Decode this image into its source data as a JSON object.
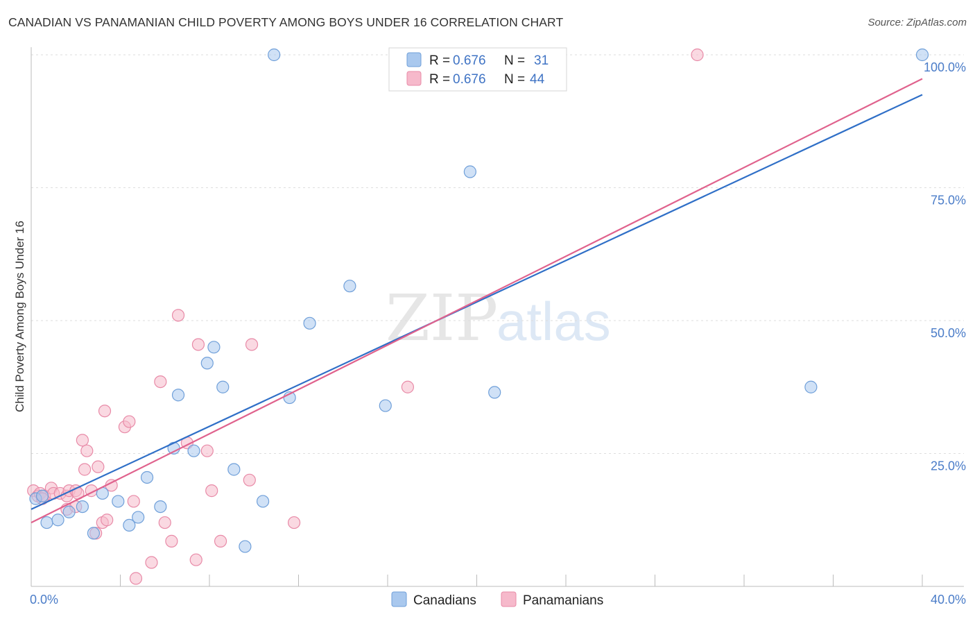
{
  "title": "CANADIAN VS PANAMANIAN CHILD POVERTY AMONG BOYS UNDER 16 CORRELATION CHART",
  "source": "Source: ZipAtlas.com",
  "watermark": {
    "zip": "ZIP",
    "atlas": "atlas"
  },
  "colors": {
    "canadians_fill": "#a9c8ee",
    "canadians_stroke": "#6f9fd9",
    "canadians_line": "#2f6fc7",
    "panamanians_fill": "#f6b9cb",
    "panamanians_stroke": "#e88aa7",
    "panamanians_line": "#e0628d",
    "tick_text": "#4a7cc8",
    "grid": "#dddddd"
  },
  "legend": {
    "rows": [
      {
        "r_label": "R = ",
        "r_value": "0.676",
        "n_label": "N = ",
        "n_value": "31",
        "series": "Canadians"
      },
      {
        "r_label": "R = ",
        "r_value": "0.676",
        "n_label": "N = ",
        "n_value": "44",
        "series": "Panamanians"
      }
    ]
  },
  "chart_data": {
    "type": "scatter",
    "title": "CANADIAN VS PANAMANIAN CHILD POVERTY AMONG BOYS UNDER 16 CORRELATION CHART",
    "xlabel": "",
    "ylabel": "Child Poverty Among Boys Under 16",
    "xlim": [
      0,
      40
    ],
    "ylim": [
      0,
      102
    ],
    "x_tick_labels": [
      "0.0%",
      "40.0%"
    ],
    "y_ticks": [
      25,
      50,
      75,
      100
    ],
    "y_tick_labels": [
      "25.0%",
      "50.0%",
      "75.0%",
      "100.0%"
    ],
    "grid": true,
    "legend_position": "top-center",
    "series": [
      {
        "name": "Canadians",
        "r": 0.676,
        "n": 31,
        "trend": {
          "x0": 0,
          "y0": 14.5,
          "x1": 40,
          "y1": 92.5
        },
        "points": [
          [
            0.2,
            16.5
          ],
          [
            0.5,
            17.0
          ],
          [
            0.7,
            12.0
          ],
          [
            1.2,
            12.5
          ],
          [
            1.7,
            14.0
          ],
          [
            2.3,
            15.0
          ],
          [
            2.8,
            10.0
          ],
          [
            3.2,
            17.5
          ],
          [
            3.9,
            16.0
          ],
          [
            4.4,
            11.5
          ],
          [
            4.8,
            13.0
          ],
          [
            5.2,
            20.5
          ],
          [
            5.8,
            15.0
          ],
          [
            6.6,
            36.0
          ],
          [
            6.4,
            26.0
          ],
          [
            7.3,
            25.5
          ],
          [
            7.9,
            42.0
          ],
          [
            8.2,
            45.0
          ],
          [
            8.6,
            37.5
          ],
          [
            9.1,
            22.0
          ],
          [
            9.6,
            7.5
          ],
          [
            10.4,
            16.0
          ],
          [
            10.9,
            100.0
          ],
          [
            11.6,
            35.5
          ],
          [
            12.5,
            49.5
          ],
          [
            14.3,
            56.5
          ],
          [
            15.9,
            34.0
          ],
          [
            19.7,
            78.0
          ],
          [
            20.8,
            36.5
          ],
          [
            35.0,
            37.5
          ],
          [
            40.0,
            100.0
          ]
        ]
      },
      {
        "name": "Panamanians",
        "r": 0.676,
        "n": 44,
        "trend": {
          "x0": 0,
          "y0": 12.0,
          "x1": 40,
          "y1": 95.5
        },
        "points": [
          [
            0.1,
            18.0
          ],
          [
            0.3,
            17.0
          ],
          [
            0.4,
            17.5
          ],
          [
            0.6,
            17.0
          ],
          [
            0.9,
            18.5
          ],
          [
            1.0,
            17.5
          ],
          [
            1.3,
            17.5
          ],
          [
            1.6,
            17.0
          ],
          [
            1.6,
            14.5
          ],
          [
            1.7,
            18.0
          ],
          [
            2.0,
            15.0
          ],
          [
            2.0,
            18.0
          ],
          [
            2.1,
            17.5
          ],
          [
            2.3,
            27.5
          ],
          [
            2.4,
            22.0
          ],
          [
            2.5,
            25.5
          ],
          [
            2.7,
            18.0
          ],
          [
            2.9,
            10.0
          ],
          [
            3.0,
            22.5
          ],
          [
            3.2,
            12.0
          ],
          [
            3.3,
            33.0
          ],
          [
            3.4,
            12.5
          ],
          [
            3.6,
            19.0
          ],
          [
            4.2,
            30.0
          ],
          [
            4.4,
            31.0
          ],
          [
            4.6,
            16.0
          ],
          [
            4.7,
            1.5
          ],
          [
            5.4,
            4.5
          ],
          [
            5.8,
            38.5
          ],
          [
            6.0,
            12.0
          ],
          [
            6.3,
            8.5
          ],
          [
            6.6,
            51.0
          ],
          [
            7.0,
            27.0
          ],
          [
            7.4,
            5.0
          ],
          [
            7.5,
            45.5
          ],
          [
            7.9,
            25.5
          ],
          [
            8.1,
            18.0
          ],
          [
            8.5,
            8.5
          ],
          [
            9.8,
            20.0
          ],
          [
            9.9,
            45.5
          ],
          [
            11.8,
            12.0
          ],
          [
            16.9,
            37.5
          ],
          [
            29.9,
            100.0
          ],
          [
            0.5,
            16.5
          ]
        ]
      }
    ]
  },
  "bottom_legend": [
    {
      "label": "Canadians"
    },
    {
      "label": "Panamanians"
    }
  ]
}
